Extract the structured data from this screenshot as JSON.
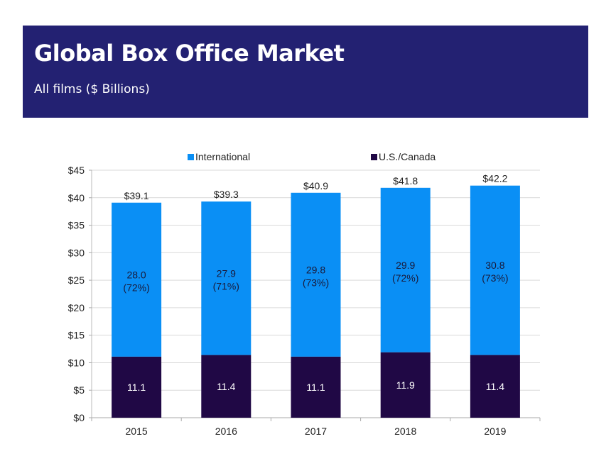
{
  "header": {
    "title": "Global Box Office Market",
    "subtitle": "All films ($ Billions)"
  },
  "colors": {
    "header_bg": "#232172",
    "international": "#0a8ff5",
    "us_canada": "#200845",
    "gridline": "#d9d9d9"
  },
  "chart_data": {
    "type": "bar",
    "stacked": true,
    "title": "Global Box Office Market",
    "subtitle": "All films ($ Billions)",
    "xlabel": "",
    "ylabel": "",
    "categories": [
      "2015",
      "2016",
      "2017",
      "2018",
      "2019"
    ],
    "ylim": [
      0,
      45
    ],
    "yticks": [
      0,
      5,
      10,
      15,
      20,
      25,
      30,
      35,
      40,
      45
    ],
    "ytick_labels": [
      "$0",
      "$5",
      "$10",
      "$15",
      "$20",
      "$25",
      "$30",
      "$35",
      "$40",
      "$45"
    ],
    "grid": true,
    "legend_position": "top",
    "series": [
      {
        "name": "U.S./Canada",
        "color": "#200845",
        "values": [
          11.1,
          11.4,
          11.1,
          11.9,
          11.4
        ],
        "labels": [
          "11.1",
          "11.4",
          "11.1",
          "11.9",
          "11.4"
        ]
      },
      {
        "name": "International",
        "color": "#0a8ff5",
        "values": [
          28.0,
          27.9,
          29.8,
          29.9,
          30.8
        ],
        "labels": [
          "28.0",
          "27.9",
          "29.8",
          "29.9",
          "30.8"
        ],
        "share_labels": [
          "(72%)",
          "(71%)",
          "(73%)",
          "(72%)",
          "(73%)"
        ]
      }
    ],
    "totals": [
      39.1,
      39.3,
      40.9,
      41.8,
      42.2
    ],
    "total_labels": [
      "$39.1",
      "$39.3",
      "$40.9",
      "$41.8",
      "$42.2"
    ],
    "legend": [
      "International",
      "U.S./Canada"
    ]
  }
}
